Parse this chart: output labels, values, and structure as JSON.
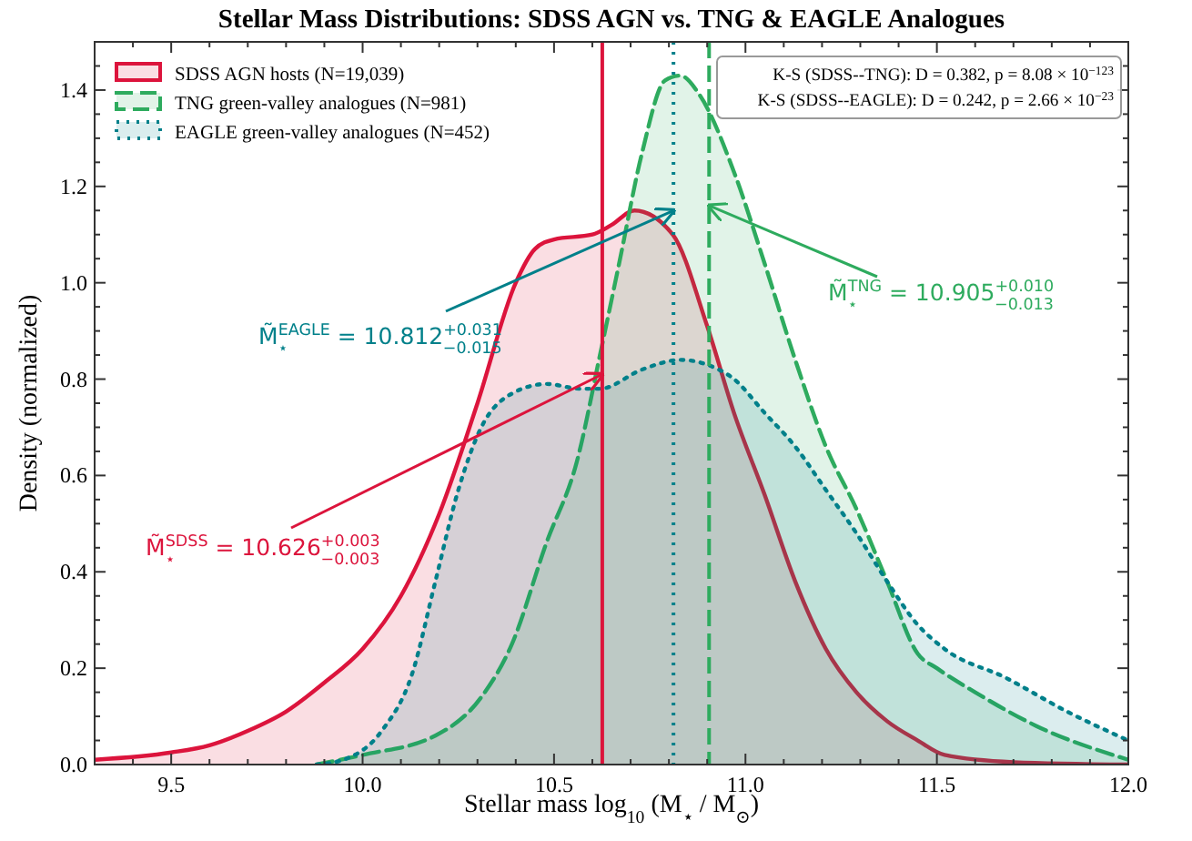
{
  "chart_data": {
    "type": "area",
    "title": "Stellar Mass Distributions: SDSS AGN vs. TNG & EAGLE Analogues",
    "xlabel": "Stellar mass log$_{10}$ (M$_{⋆}$ / M$_{⊙}$)",
    "ylabel": "Density (normalized)",
    "xlim": [
      9.3,
      12.0
    ],
    "ylim": [
      0,
      1.5
    ],
    "xticks": [
      {
        "value": 9.3,
        "label": null
      },
      {
        "value": 9.4,
        "label": null
      },
      {
        "value": 9.5,
        "label": "9.5"
      },
      {
        "value": 9.6,
        "label": null
      },
      {
        "value": 9.7,
        "label": null
      },
      {
        "value": 9.8,
        "label": null
      },
      {
        "value": 9.9,
        "label": null
      },
      {
        "value": 10.0,
        "label": "10.0"
      },
      {
        "value": 10.1,
        "label": null
      },
      {
        "value": 10.2,
        "label": null
      },
      {
        "value": 10.3,
        "label": null
      },
      {
        "value": 10.4,
        "label": null
      },
      {
        "value": 10.5,
        "label": "10.5"
      },
      {
        "value": 10.6,
        "label": null
      },
      {
        "value": 10.7,
        "label": null
      },
      {
        "value": 10.8,
        "label": null
      },
      {
        "value": 10.9,
        "label": null
      },
      {
        "value": 11.0,
        "label": "11.0"
      },
      {
        "value": 11.1,
        "label": null
      },
      {
        "value": 11.2,
        "label": null
      },
      {
        "value": 11.3,
        "label": null
      },
      {
        "value": 11.4,
        "label": null
      },
      {
        "value": 11.5,
        "label": "11.5"
      },
      {
        "value": 11.6,
        "label": null
      },
      {
        "value": 11.7,
        "label": null
      },
      {
        "value": 11.8,
        "label": null
      },
      {
        "value": 11.9,
        "label": null
      },
      {
        "value": 12.0,
        "label": "12.0"
      }
    ],
    "yticks": [
      {
        "value": 0,
        "label": "0.0"
      },
      {
        "value": 0.05,
        "label": null
      },
      {
        "value": 0.1,
        "label": null
      },
      {
        "value": 0.15,
        "label": null
      },
      {
        "value": 0.2,
        "label": "0.2"
      },
      {
        "value": 0.25,
        "label": null
      },
      {
        "value": 0.3,
        "label": null
      },
      {
        "value": 0.35,
        "label": null
      },
      {
        "value": 0.4,
        "label": "0.4"
      },
      {
        "value": 0.45,
        "label": null
      },
      {
        "value": 0.5,
        "label": null
      },
      {
        "value": 0.55,
        "label": null
      },
      {
        "value": 0.6,
        "label": "0.6"
      },
      {
        "value": 0.65,
        "label": null
      },
      {
        "value": 0.7,
        "label": null
      },
      {
        "value": 0.75,
        "label": null
      },
      {
        "value": 0.8,
        "label": "0.8"
      },
      {
        "value": 0.85,
        "label": null
      },
      {
        "value": 0.9,
        "label": null
      },
      {
        "value": 0.95,
        "label": null
      },
      {
        "value": 1.0,
        "label": "1.0"
      },
      {
        "value": 1.05,
        "label": null
      },
      {
        "value": 1.1,
        "label": null
      },
      {
        "value": 1.15,
        "label": null
      },
      {
        "value": 1.2,
        "label": "1.2"
      },
      {
        "value": 1.25,
        "label": null
      },
      {
        "value": 1.3,
        "label": null
      },
      {
        "value": 1.35,
        "label": null
      },
      {
        "value": 1.4,
        "label": "1.4"
      },
      {
        "value": 1.45,
        "label": null
      }
    ],
    "grid": false,
    "legend": "top left",
    "series": [
      {
        "name": "SDSS AGN hosts (N=19,039)",
        "color": "#dc143c",
        "line_style": "solid",
        "x": [
          9.3,
          9.5,
          9.6,
          9.7,
          9.8,
          9.9,
          10.0,
          10.1,
          10.2,
          10.3,
          10.4,
          10.45,
          10.5,
          10.6,
          10.65,
          10.71,
          10.81,
          10.9,
          10.97,
          11.05,
          11.13,
          11.21,
          11.29,
          11.37,
          11.45,
          11.52,
          11.7,
          12.0
        ],
        "values": [
          0.01,
          0.025,
          0.04,
          0.07,
          0.11,
          0.17,
          0.24,
          0.35,
          0.52,
          0.75,
          1.0,
          1.07,
          1.09,
          1.1,
          1.12,
          1.15,
          1.1,
          0.91,
          0.73,
          0.56,
          0.38,
          0.24,
          0.15,
          0.09,
          0.05,
          0.02,
          0.005,
          0
        ]
      },
      {
        "name": "TNG green-valley analogues (N=981)",
        "color": "#2eab5e",
        "line_style": "dashed",
        "x": [
          9.88,
          10.0,
          10.19,
          10.31,
          10.39,
          10.48,
          10.56,
          10.62,
          10.67,
          10.73,
          10.79,
          10.83,
          10.88,
          10.97,
          11.05,
          11.13,
          11.21,
          11.29,
          11.37,
          11.45,
          11.5,
          11.6,
          11.76,
          12.0
        ],
        "values": [
          0,
          0.02,
          0.06,
          0.14,
          0.25,
          0.46,
          0.63,
          0.85,
          1.04,
          1.27,
          1.42,
          1.43,
          1.39,
          1.23,
          1.04,
          0.84,
          0.66,
          0.53,
          0.38,
          0.23,
          0.2,
          0.15,
          0.08,
          0.01
        ]
      },
      {
        "name": "EAGLE green-valley analogues (N=452)",
        "color": "#00808a",
        "line_style": "dotted",
        "x": [
          9.88,
          9.95,
          10.05,
          10.13,
          10.19,
          10.25,
          10.31,
          10.39,
          10.48,
          10.57,
          10.62,
          10.73,
          10.83,
          10.9,
          10.97,
          11.05,
          11.13,
          11.21,
          11.29,
          11.37,
          11.45,
          11.52,
          11.68,
          11.84,
          12.0
        ],
        "values": [
          0,
          0.01,
          0.07,
          0.19,
          0.38,
          0.57,
          0.7,
          0.77,
          0.79,
          0.78,
          0.78,
          0.82,
          0.84,
          0.83,
          0.8,
          0.73,
          0.66,
          0.57,
          0.48,
          0.38,
          0.29,
          0.24,
          0.18,
          0.11,
          0.05
        ]
      }
    ],
    "ref_lines": [
      {
        "axis": "x",
        "value": 10.626,
        "color": "#dc143c",
        "line_style": "solid"
      },
      {
        "axis": "x",
        "value": 10.812,
        "color": "#00808a",
        "line_style": "dotted"
      },
      {
        "axis": "x",
        "value": 10.905,
        "color": "#2eab5e",
        "line_style": "dashed"
      }
    ],
    "annotations": [
      {
        "text": "M̃$_{⋆}$$^{SDSS}$ = 10.626$^{+0.003}$$_{−0.003}$",
        "x": 10.626,
        "y": 0.81
      },
      {
        "text": "M̃$_{⋆}$$^{EAGLE}$ = 10.812$^{+0.031}$$_{−0.015}$",
        "x": 10.812,
        "y": 1.15
      },
      {
        "text": "M̃$_{⋆}$$^{TNG}$ = 10.905$^{+0.010}$$_{−0.013}$",
        "x": 10.905,
        "y": 1.16
      },
      "K-S (SDSS--TNG): D = 0.382, p = 8.08 × 10$^{−123}$",
      "K-S (SDSS--EAGLE): D = 0.242, p = 2.66 × 10$^{−23}$"
    ]
  }
}
